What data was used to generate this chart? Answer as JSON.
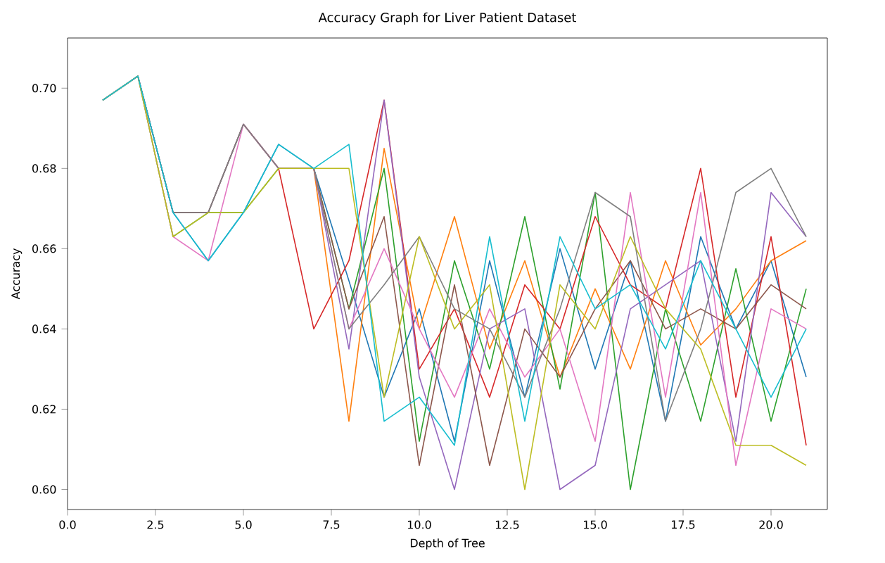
{
  "chart_data": {
    "type": "line",
    "title": "Accuracy Graph for Liver Patient Dataset",
    "xlabel": "Depth of Tree",
    "ylabel": "Accuracy",
    "x": [
      1,
      2,
      3,
      4,
      5,
      6,
      7,
      8,
      9,
      10,
      11,
      12,
      13,
      14,
      15,
      16,
      17,
      18,
      19,
      20,
      21
    ],
    "xlim": [
      0,
      21.6
    ],
    "ylim": [
      0.595,
      0.7125
    ],
    "xticks": [
      {
        "value": 0,
        "label": "0.0"
      },
      {
        "value": 2.5,
        "label": "2.5"
      },
      {
        "value": 5,
        "label": "5.0"
      },
      {
        "value": 7.5,
        "label": "7.5"
      },
      {
        "value": 10,
        "label": "10.0"
      },
      {
        "value": 12.5,
        "label": "12.5"
      },
      {
        "value": 15,
        "label": "15.0"
      },
      {
        "value": 17.5,
        "label": "17.5"
      },
      {
        "value": 20,
        "label": "20.0"
      }
    ],
    "yticks": [
      {
        "value": 0.6,
        "label": "0.60"
      },
      {
        "value": 0.62,
        "label": "0.62"
      },
      {
        "value": 0.64,
        "label": "0.64"
      },
      {
        "value": 0.66,
        "label": "0.66"
      },
      {
        "value": 0.68,
        "label": "0.68"
      },
      {
        "value": 0.7,
        "label": "0.70"
      }
    ],
    "series": [
      {
        "color": "#1f77b4",
        "values": [
          0.697,
          0.703,
          0.669,
          0.657,
          0.669,
          0.686,
          0.68,
          0.652,
          0.623,
          0.645,
          0.612,
          0.657,
          0.623,
          0.66,
          0.63,
          0.657,
          0.617,
          0.663,
          0.64,
          0.657,
          0.628
        ]
      },
      {
        "color": "#ff7f0e",
        "values": [
          null,
          null,
          null,
          null,
          null,
          0.68,
          0.68,
          0.617,
          0.685,
          0.64,
          0.668,
          0.635,
          0.657,
          0.628,
          0.65,
          0.63,
          0.657,
          0.636,
          0.645,
          0.657,
          0.662
        ]
      },
      {
        "color": "#2ca02c",
        "values": [
          0.697,
          0.703,
          0.663,
          0.669,
          0.669,
          0.68,
          0.68,
          0.645,
          0.68,
          0.612,
          0.657,
          0.63,
          0.668,
          0.625,
          0.674,
          0.6,
          0.645,
          0.617,
          0.655,
          0.617,
          0.65
        ]
      },
      {
        "color": "#d62728",
        "values": [
          null,
          null,
          null,
          null,
          0.691,
          0.68,
          0.64,
          0.657,
          0.697,
          0.63,
          0.645,
          0.623,
          0.651,
          0.64,
          0.668,
          0.651,
          0.645,
          0.68,
          0.623,
          0.663,
          0.611
        ]
      },
      {
        "color": "#9467bd",
        "values": [
          0.697,
          0.703,
          0.669,
          0.669,
          0.691,
          0.68,
          0.68,
          0.635,
          0.697,
          0.628,
          0.6,
          0.64,
          0.645,
          0.6,
          0.606,
          0.645,
          0.651,
          0.657,
          0.612,
          0.674,
          0.663
        ]
      },
      {
        "color": "#8c564b",
        "values": [
          0.697,
          0.703,
          0.669,
          0.669,
          0.691,
          0.68,
          0.68,
          0.645,
          0.668,
          0.606,
          0.651,
          0.606,
          0.64,
          0.628,
          0.645,
          0.657,
          0.64,
          0.645,
          0.64,
          0.651,
          0.645
        ]
      },
      {
        "color": "#e377c2",
        "values": [
          0.697,
          0.703,
          0.663,
          0.657,
          0.691,
          0.68,
          0.68,
          0.64,
          0.66,
          0.64,
          0.623,
          0.645,
          0.628,
          0.64,
          0.612,
          0.674,
          0.623,
          0.674,
          0.606,
          0.645,
          0.64
        ]
      },
      {
        "color": "#7f7f7f",
        "values": [
          0.697,
          0.703,
          0.669,
          0.669,
          0.691,
          0.68,
          0.68,
          0.64,
          0.651,
          0.663,
          0.645,
          0.64,
          0.623,
          0.645,
          0.674,
          0.668,
          0.617,
          0.64,
          0.674,
          0.68,
          0.663
        ]
      },
      {
        "color": "#bcbd22",
        "values": [
          0.697,
          0.703,
          0.663,
          0.669,
          0.669,
          0.68,
          0.68,
          0.68,
          0.623,
          0.663,
          0.64,
          0.651,
          0.6,
          0.651,
          0.64,
          0.663,
          0.645,
          0.635,
          0.611,
          0.611,
          0.606
        ]
      },
      {
        "color": "#17becf",
        "values": [
          0.697,
          0.703,
          0.669,
          0.657,
          0.669,
          0.686,
          0.68,
          0.686,
          0.617,
          0.623,
          0.611,
          0.663,
          0.617,
          0.663,
          0.645,
          0.651,
          0.635,
          0.657,
          0.64,
          0.623,
          0.64
        ]
      }
    ]
  }
}
